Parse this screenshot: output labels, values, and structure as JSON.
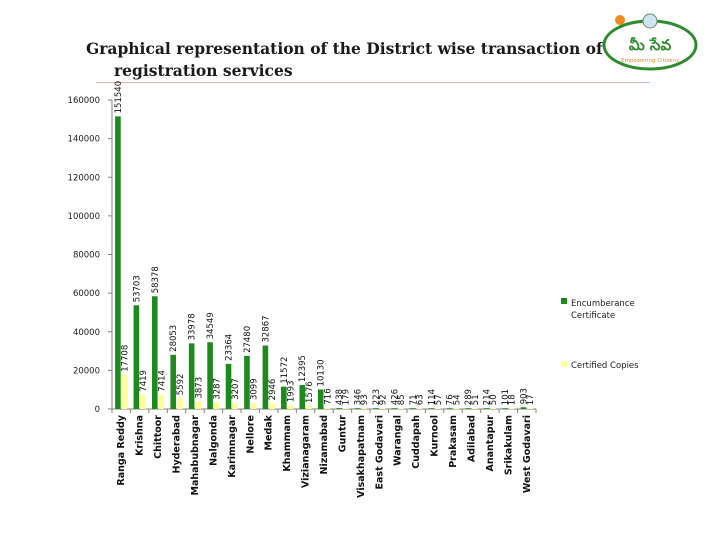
{
  "header": {
    "title_line1": "Graphical representation of the District wise transaction of",
    "title_line2": "registration services"
  },
  "logo": {
    "glyph_text": "మీ సేవ",
    "sub_text": "Empowering Citizens",
    "icon": "mee-seva-logo-icon",
    "colors": {
      "green": "#2e8b2e",
      "orange": "#f08a1c",
      "yellow": "#f3cf1f"
    }
  },
  "colors": {
    "encumbrance": "#1e8a1e",
    "certified": "#ffff99",
    "axis": "#808080",
    "rule": "#e6b0b0"
  },
  "chart_data": {
    "type": "bar",
    "title": "Graphical representation of the District wise transaction of registration services",
    "xlabel": "",
    "ylabel": "",
    "ylim": [
      0,
      160000
    ],
    "yticks": [
      0,
      20000,
      40000,
      60000,
      80000,
      100000,
      120000,
      140000,
      160000
    ],
    "grid": false,
    "legend": "right",
    "categories": [
      "Ranga Reddy",
      "Krishna",
      "Chittoor",
      "Hyderabad",
      "Mahabubnagar",
      "Nalgonda",
      "Karimnagar",
      "Nellore",
      "Medak",
      "Khammam",
      "Vizianagaram",
      "Nizamabad",
      "Guntur",
      "Visakhapatnam",
      "East Godavari",
      "Warangal",
      "Cuddapah",
      "Kurnool",
      "Prakasam",
      "Adilabad",
      "Anantapur",
      "Srikakulam",
      "West Godavari"
    ],
    "series": [
      {
        "name": "Encumberance Certificate",
        "values": [
          151540,
          53703,
          58378,
          28053,
          33978,
          34549,
          23364,
          27480,
          32867,
          11572,
          12395,
          10130,
          438,
          346,
          223,
          426,
          71,
          114,
          76,
          289,
          214,
          101,
          903
        ],
        "labels": [
          "151540",
          "53703",
          "58378",
          "28053",
          "33978",
          "34549",
          "23364",
          "27480",
          "32867",
          "11572",
          "12395",
          "10130",
          "438",
          "346",
          "223",
          "426",
          "71",
          "114",
          "76",
          "289",
          "214",
          "101",
          "903"
        ]
      },
      {
        "name": "Certified Copies",
        "values": [
          17708,
          7419,
          7414,
          5592,
          3873,
          3287,
          3207,
          3099,
          2946,
          1993,
          1576,
          716,
          179,
          93,
          92,
          85,
          63,
          57,
          54,
          51,
          50,
          18,
          17
        ],
        "labels": [
          "17708",
          "7419",
          "7414",
          "5592",
          "3873",
          "3287",
          "3207",
          "3099",
          "2946",
          "1993",
          "1576",
          "716",
          "179",
          "93",
          "92",
          "85",
          "63",
          "57",
          "54",
          "51",
          "50",
          "18",
          "17"
        ]
      }
    ]
  }
}
